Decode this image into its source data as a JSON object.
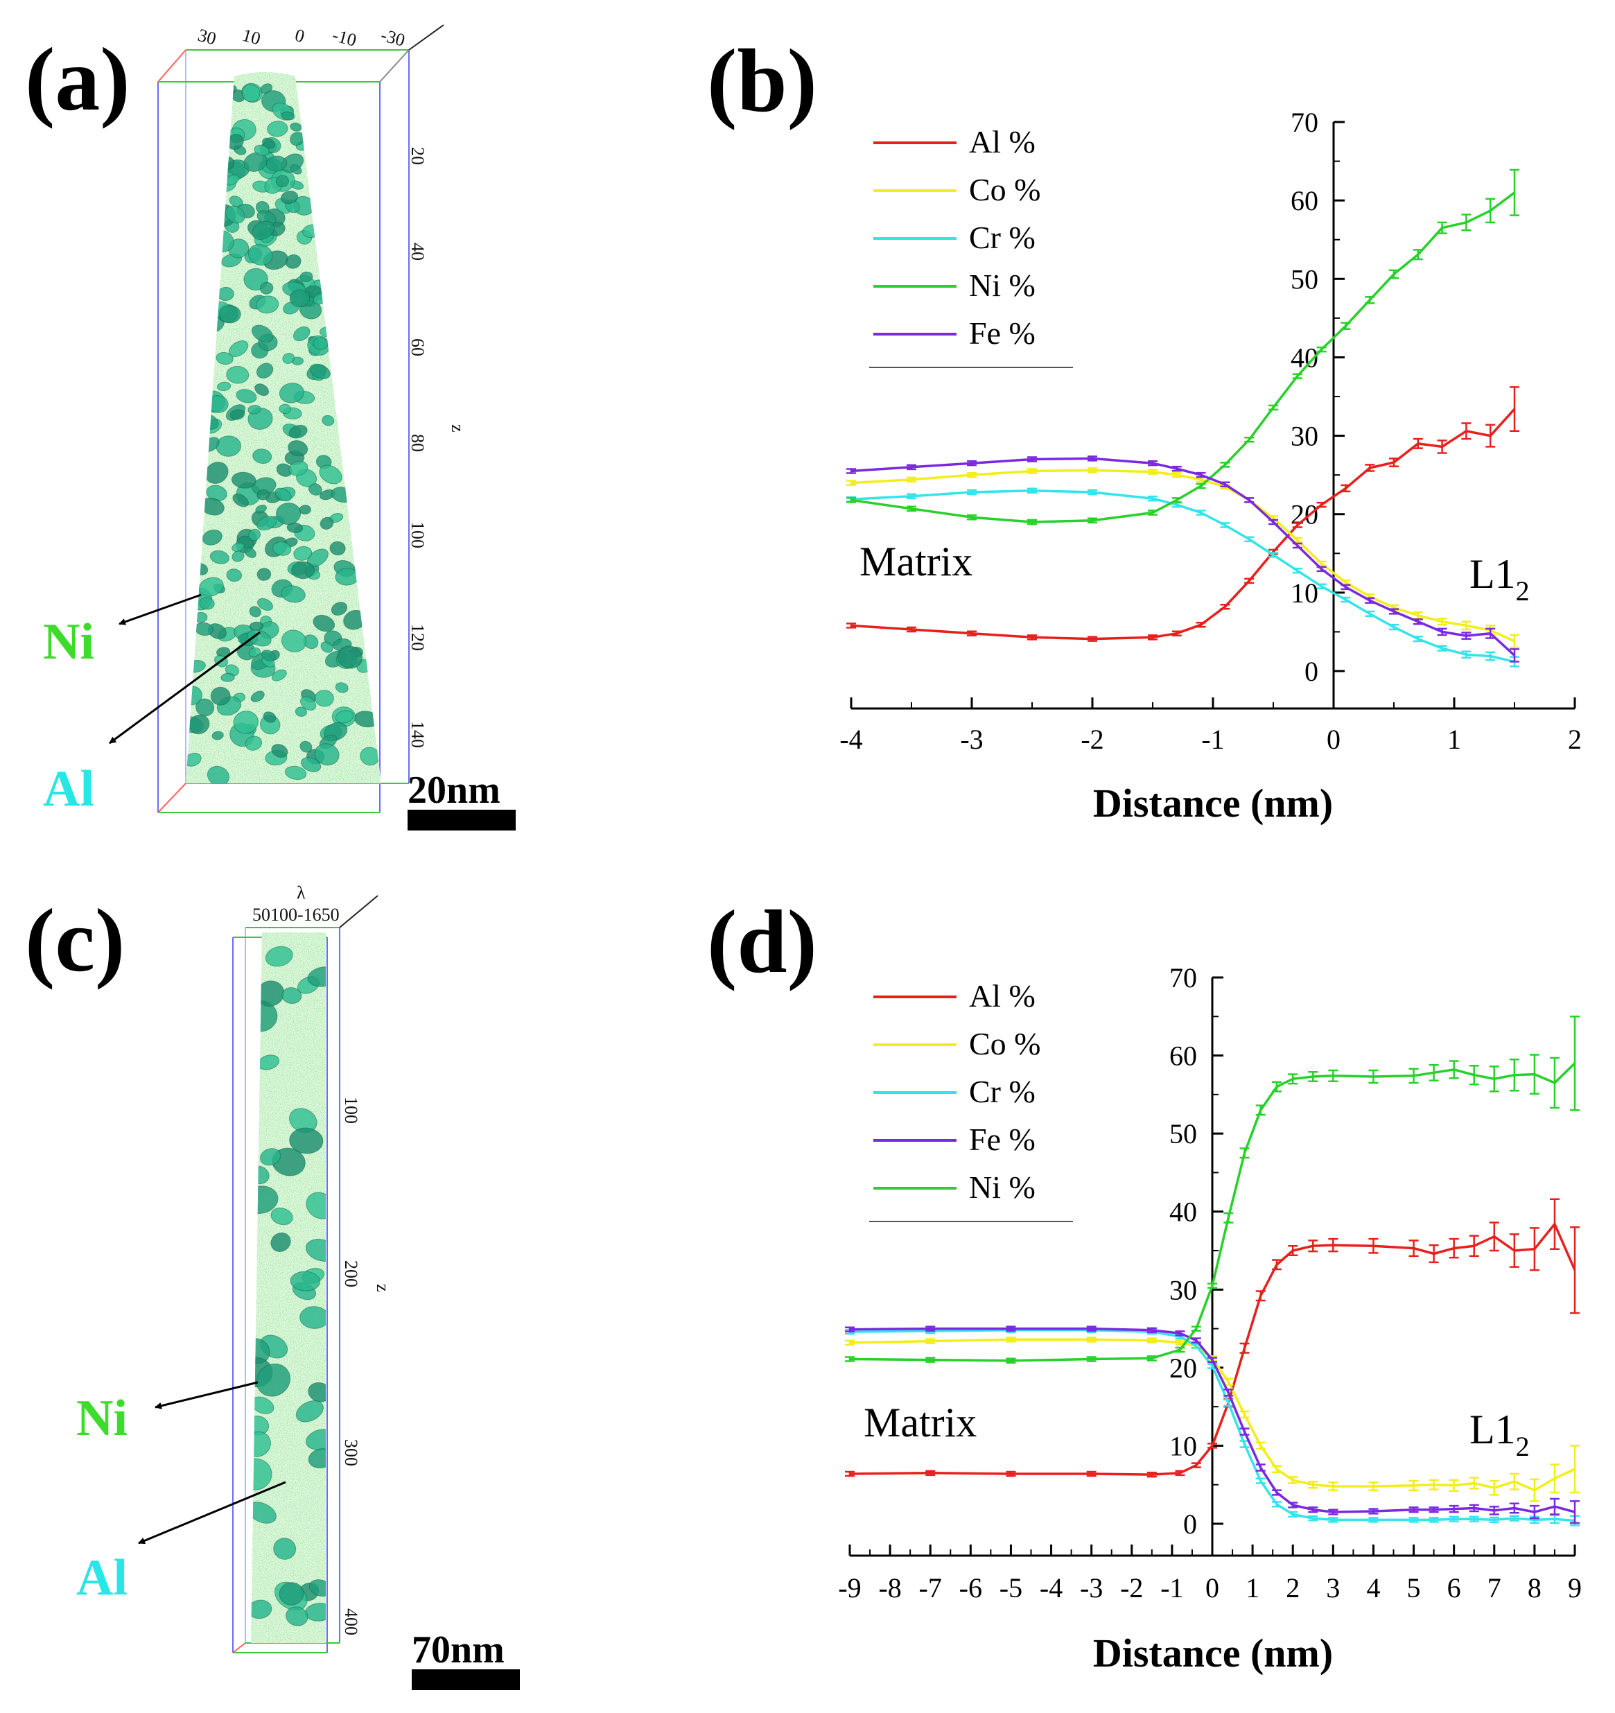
{
  "panels": {
    "a": {
      "label": "(a)",
      "top_ticks": [
        "30",
        "10",
        "0",
        "-10",
        "-30"
      ],
      "z_ticks": [
        "20",
        "40",
        "60",
        "80",
        "100",
        "120",
        "140"
      ],
      "z_label": "z",
      "labels": {
        "ni": "Ni",
        "al": "Al"
      },
      "scale_bar": "20nm",
      "colors": {
        "ni": "#3ddc2c",
        "al": "#27e6e6"
      }
    },
    "c": {
      "label": "(c)",
      "top_ticks": [
        "50100-1650"
      ],
      "top_axis_label": "λ",
      "z_ticks": [
        "100",
        "200",
        "300",
        "400"
      ],
      "z_label": "z",
      "labels": {
        "ni": "Ni",
        "al": "Al"
      },
      "scale_bar": "70nm",
      "colors": {
        "ni": "#3ddc2c",
        "al": "#27e6e6"
      }
    }
  },
  "chart_data": [
    {
      "id": "b",
      "panel_label": "(b)",
      "type": "line",
      "xlabel": "Distance (nm)",
      "ylabel": "",
      "xlim": [
        -4,
        2
      ],
      "ylim": [
        0,
        70
      ],
      "xticks": [
        "-4",
        "-3",
        "-2",
        "-1",
        "0",
        "1",
        "2"
      ],
      "yticks": [
        "0",
        "10",
        "20",
        "30",
        "40",
        "50",
        "60",
        "70"
      ],
      "annotations": {
        "matrix": "Matrix",
        "l12_main": "L1",
        "l12_sub": "2"
      },
      "legend": [
        "Al %",
        "Co %",
        "Cr %",
        "Ni %",
        "Fe %"
      ],
      "series": [
        {
          "name": "Al %",
          "color": "#e8201c",
          "x": [
            -4,
            -3.5,
            -3,
            -2.5,
            -2,
            -1.5,
            -1.3,
            -1.1,
            -0.9,
            -0.7,
            -0.5,
            -0.3,
            -0.1,
            0.1,
            0.3,
            0.5,
            0.7,
            0.9,
            1.1,
            1.3,
            1.5
          ],
          "y": [
            5.8,
            5.3,
            4.8,
            4.3,
            4.1,
            4.3,
            4.8,
            5.9,
            8.2,
            11.5,
            15.2,
            18.6,
            21.2,
            23.3,
            25.9,
            26.6,
            29.0,
            28.6,
            30.6,
            30.0,
            33.4
          ],
          "err": [
            0,
            0,
            0,
            0,
            0,
            0,
            0,
            0,
            0,
            0,
            0,
            0,
            0,
            0.4,
            0.4,
            0.5,
            0.6,
            0.8,
            1.0,
            1.4,
            2.8
          ]
        },
        {
          "name": "Co %",
          "color": "#f2ee1a",
          "x": [
            -4,
            -3.5,
            -3,
            -2.5,
            -2,
            -1.5,
            -1.3,
            -1.1,
            -0.9,
            -0.7,
            -0.5,
            -0.3,
            -0.1,
            0.1,
            0.3,
            0.5,
            0.7,
            0.9,
            1.1,
            1.3,
            1.5
          ],
          "y": [
            24.0,
            24.4,
            25.0,
            25.5,
            25.6,
            25.4,
            25.0,
            24.4,
            23.5,
            21.8,
            19.5,
            16.7,
            13.7,
            11.3,
            9.5,
            8.1,
            7.1,
            6.3,
            5.8,
            5.2,
            3.8
          ],
          "err": [
            0,
            0,
            0,
            0,
            0,
            0,
            0,
            0,
            0,
            0,
            0,
            0,
            0,
            0,
            0.3,
            0.3,
            0.4,
            0.4,
            0.5,
            0.6,
            0.8
          ]
        },
        {
          "name": "Cr %",
          "color": "#35e3ea",
          "x": [
            -4,
            -3.5,
            -3,
            -2.5,
            -2,
            -1.5,
            -1.3,
            -1.1,
            -0.9,
            -0.7,
            -0.5,
            -0.3,
            -0.1,
            0.1,
            0.3,
            0.5,
            0.7,
            0.9,
            1.1,
            1.3,
            1.5
          ],
          "y": [
            21.9,
            22.3,
            22.8,
            23.0,
            22.8,
            22.0,
            21.2,
            20.2,
            18.6,
            16.8,
            14.8,
            12.8,
            10.8,
            9.1,
            7.3,
            5.6,
            4.1,
            2.9,
            2.1,
            1.9,
            1.2
          ],
          "err": [
            0,
            0,
            0,
            0,
            0,
            0,
            0,
            0,
            0,
            0,
            0,
            0,
            0,
            0,
            0.3,
            0.3,
            0.3,
            0.3,
            0.4,
            0.5,
            0.6
          ]
        },
        {
          "name": "Ni %",
          "color": "#27d12a",
          "x": [
            -4,
            -3.5,
            -3,
            -2.5,
            -2,
            -1.5,
            -1.3,
            -1.1,
            -0.9,
            -0.7,
            -0.5,
            -0.3,
            -0.1,
            0.1,
            0.3,
            0.5,
            0.7,
            0.9,
            1.1,
            1.3,
            1.5
          ],
          "y": [
            21.8,
            20.7,
            19.6,
            19.0,
            19.2,
            20.2,
            21.8,
            23.6,
            26.3,
            29.5,
            33.6,
            37.6,
            41.0,
            44.0,
            47.3,
            50.6,
            53.1,
            56.5,
            57.2,
            58.7,
            61.0
          ],
          "err": [
            0,
            0,
            0,
            0,
            0,
            0,
            0,
            0,
            0,
            0,
            0,
            0,
            0,
            0.4,
            0.4,
            0.5,
            0.6,
            0.7,
            1.0,
            1.5,
            2.9
          ]
        },
        {
          "name": "Fe %",
          "color": "#7a29e0",
          "x": [
            -4,
            -3.5,
            -3,
            -2.5,
            -2,
            -1.5,
            -1.3,
            -1.1,
            -0.9,
            -0.7,
            -0.5,
            -0.3,
            -0.1,
            0.1,
            0.3,
            0.5,
            0.7,
            0.9,
            1.1,
            1.3,
            1.5
          ],
          "y": [
            25.5,
            26.0,
            26.5,
            27.0,
            27.1,
            26.5,
            25.8,
            25.0,
            23.8,
            21.8,
            19.0,
            16.0,
            13.0,
            10.7,
            9.0,
            7.6,
            6.3,
            5.0,
            4.5,
            4.8,
            2.0
          ],
          "err": [
            0,
            0,
            0,
            0,
            0,
            0,
            0,
            0,
            0,
            0,
            0,
            0,
            0,
            0,
            0.3,
            0.3,
            0.3,
            0.4,
            0.4,
            0.6,
            0.8
          ]
        }
      ]
    },
    {
      "id": "d",
      "panel_label": "(d)",
      "type": "line",
      "xlabel": "Distance (nm)",
      "ylabel": "",
      "xlim": [
        -9,
        9
      ],
      "ylim": [
        0,
        70
      ],
      "xticks": [
        "-9",
        "-8",
        "-7",
        "-6",
        "-5",
        "-4",
        "-3",
        "-2",
        "-1",
        "0",
        "1",
        "2",
        "3",
        "4",
        "5",
        "6",
        "7",
        "8",
        "9"
      ],
      "yticks": [
        "0",
        "10",
        "20",
        "30",
        "40",
        "50",
        "60",
        "70"
      ],
      "annotations": {
        "matrix": "Matrix",
        "l12_main": "L1",
        "l12_sub": "2"
      },
      "legend": [
        "Al %",
        "Co %",
        "Cr %",
        "Fe %",
        "Ni %"
      ],
      "series": [
        {
          "name": "Al %",
          "color": "#e8201c",
          "x": [
            -9,
            -7,
            -5,
            -3,
            -1.5,
            -0.8,
            -0.4,
            0,
            0.4,
            0.8,
            1.2,
            1.6,
            2.0,
            2.5,
            3,
            4,
            5,
            5.5,
            6,
            6.5,
            7,
            7.5,
            8,
            8.5,
            9
          ],
          "y": [
            6.4,
            6.5,
            6.4,
            6.4,
            6.3,
            6.5,
            7.5,
            10.0,
            15.5,
            22.5,
            29.2,
            33.2,
            35.0,
            35.6,
            35.7,
            35.6,
            35.3,
            34.6,
            35.3,
            35.6,
            36.8,
            35.0,
            35.2,
            38.4,
            32.5
          ],
          "err": [
            0,
            0,
            0,
            0,
            0,
            0,
            0,
            0,
            0.5,
            0.6,
            0.6,
            0.6,
            0.6,
            0.7,
            0.8,
            0.9,
            1.0,
            1.1,
            1.2,
            1.3,
            1.8,
            2.1,
            2.7,
            3.2,
            5.5
          ]
        },
        {
          "name": "Co %",
          "color": "#f2ee1a",
          "x": [
            -9,
            -7,
            -5,
            -3,
            -1.5,
            -0.8,
            -0.4,
            0,
            0.4,
            0.8,
            1.2,
            1.6,
            2.0,
            2.5,
            3,
            4,
            5,
            5.5,
            6,
            6.5,
            7,
            7.5,
            8,
            8.5,
            9
          ],
          "y": [
            23.2,
            23.4,
            23.6,
            23.6,
            23.5,
            23.2,
            22.8,
            21.2,
            18.2,
            14.0,
            10.0,
            7.0,
            5.6,
            5.0,
            4.8,
            4.8,
            4.9,
            5.0,
            4.9,
            5.2,
            4.6,
            5.4,
            4.3,
            5.8,
            7.0
          ],
          "err": [
            0,
            0,
            0,
            0,
            0,
            0,
            0,
            0,
            0.4,
            0.4,
            0.4,
            0.4,
            0.4,
            0.4,
            0.5,
            0.5,
            0.6,
            0.6,
            0.7,
            0.7,
            0.9,
            1.0,
            1.4,
            1.8,
            3.0
          ]
        },
        {
          "name": "Cr %",
          "color": "#35e3ea",
          "x": [
            -9,
            -7,
            -5,
            -3,
            -1.5,
            -0.8,
            -0.4,
            0,
            0.4,
            0.8,
            1.2,
            1.6,
            2.0,
            2.5,
            3,
            4,
            5,
            5.5,
            6,
            6.5,
            7,
            7.5,
            8,
            8.5,
            9
          ],
          "y": [
            24.6,
            24.7,
            24.8,
            24.8,
            24.6,
            24.0,
            22.8,
            20.2,
            15.5,
            10.2,
            5.5,
            2.5,
            1.2,
            0.7,
            0.5,
            0.5,
            0.5,
            0.5,
            0.6,
            0.6,
            0.5,
            0.7,
            0.5,
            0.6,
            0.4
          ],
          "err": [
            0,
            0,
            0,
            0,
            0,
            0,
            0,
            0,
            0.4,
            0.4,
            0.3,
            0.3,
            0.3,
            0.2,
            0.2,
            0.2,
            0.2,
            0.2,
            0.3,
            0.3,
            0.3,
            0.3,
            0.4,
            0.5,
            0.6
          ]
        },
        {
          "name": "Fe %",
          "color": "#7a29e0",
          "x": [
            -9,
            -7,
            -5,
            -3,
            -1.5,
            -0.8,
            -0.4,
            0,
            0.4,
            0.8,
            1.2,
            1.6,
            2.0,
            2.5,
            3,
            4,
            5,
            5.5,
            6,
            6.5,
            7,
            7.5,
            8,
            8.5,
            9
          ],
          "y": [
            24.9,
            25.0,
            25.0,
            25.0,
            24.8,
            24.4,
            23.5,
            21.0,
            16.8,
            11.8,
            7.2,
            4.0,
            2.4,
            1.8,
            1.5,
            1.6,
            1.8,
            1.8,
            1.9,
            2.0,
            1.7,
            2.0,
            1.5,
            2.2,
            1.5
          ],
          "err": [
            0,
            0,
            0,
            0,
            0,
            0,
            0,
            0,
            0.4,
            0.4,
            0.4,
            0.3,
            0.3,
            0.3,
            0.3,
            0.3,
            0.3,
            0.3,
            0.4,
            0.4,
            0.5,
            0.6,
            0.8,
            1.0,
            1.4
          ]
        },
        {
          "name": "Ni %",
          "color": "#27d12a",
          "x": [
            -9,
            -7,
            -5,
            -3,
            -1.5,
            -0.8,
            -0.4,
            0,
            0.4,
            0.8,
            1.2,
            1.6,
            2.0,
            2.5,
            3,
            4,
            5,
            5.5,
            6,
            6.5,
            7,
            7.5,
            8,
            8.5,
            9
          ],
          "y": [
            21.1,
            21.0,
            20.9,
            21.1,
            21.2,
            22.3,
            25.0,
            30.5,
            39.2,
            47.5,
            53.0,
            56.0,
            57.0,
            57.3,
            57.4,
            57.3,
            57.4,
            57.8,
            58.2,
            57.5,
            57.0,
            57.5,
            57.6,
            56.5,
            59.0
          ],
          "err": [
            0,
            0,
            0,
            0,
            0,
            0,
            0,
            0,
            0.6,
            0.6,
            0.6,
            0.6,
            0.6,
            0.6,
            0.7,
            0.8,
            0.9,
            1.0,
            1.1,
            1.2,
            1.6,
            2.0,
            2.5,
            3.2,
            6.0
          ]
        }
      ]
    }
  ]
}
